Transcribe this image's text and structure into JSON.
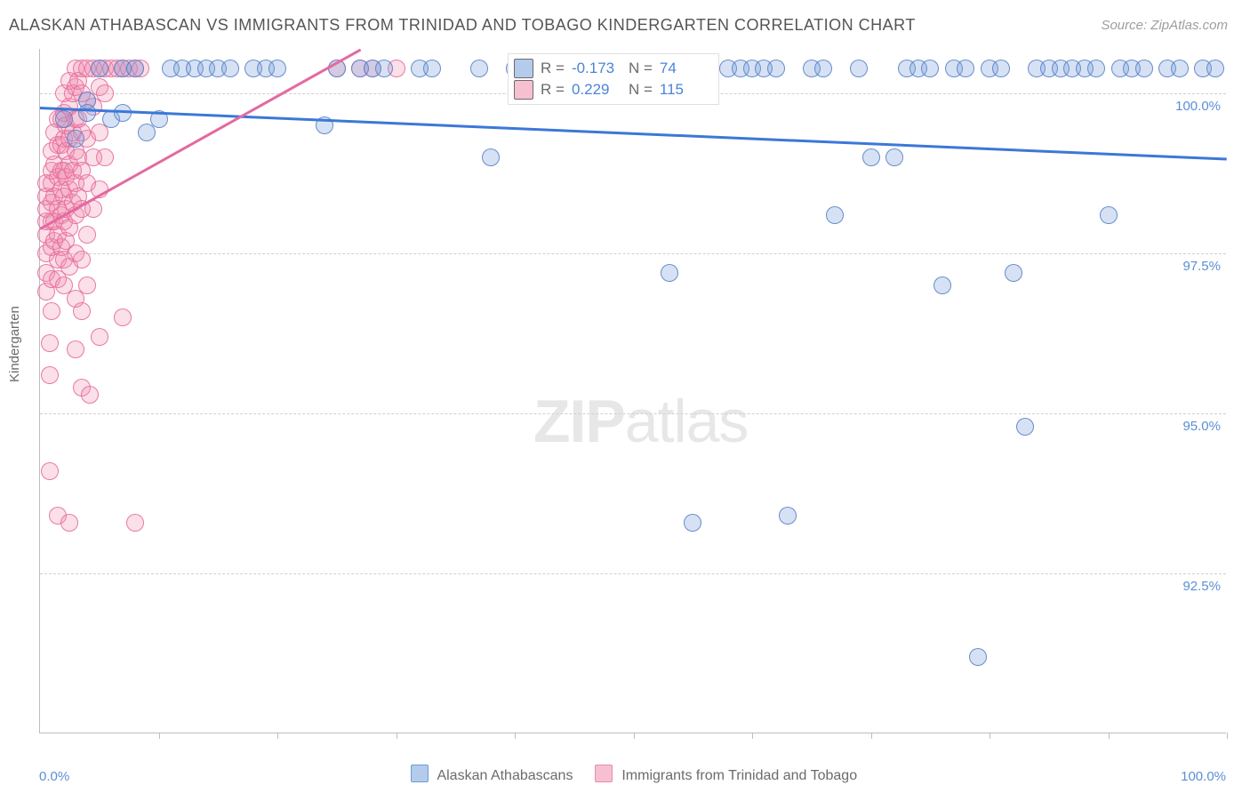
{
  "title": "ALASKAN ATHABASCAN VS IMMIGRANTS FROM TRINIDAD AND TOBAGO KINDERGARTEN CORRELATION CHART",
  "source": "Source: ZipAtlas.com",
  "watermark_a": "ZIP",
  "watermark_b": "atlas",
  "yaxis_label": "Kindergarten",
  "y_ticks": [
    {
      "value": 100.0,
      "label": "100.0%"
    },
    {
      "value": 97.5,
      "label": "97.5%"
    },
    {
      "value": 95.0,
      "label": "95.0%"
    },
    {
      "value": 92.5,
      "label": "92.5%"
    }
  ],
  "ylim": [
    90.0,
    100.7
  ],
  "xlim": [
    0,
    100
  ],
  "x_ticks_at": [
    10,
    20,
    30,
    40,
    50,
    60,
    70,
    80,
    90,
    100
  ],
  "x_left_label": "0.0%",
  "x_right_label": "100.0%",
  "series": {
    "blue": {
      "legend_label": "Alaskan Athabascans",
      "color_fill": "rgba(120,160,220,0.30)",
      "color_stroke": "rgba(90,130,200,0.9)",
      "trend_color": "#3b78d8",
      "R_label": "R =",
      "R_value": "-0.173",
      "N_label": "N =",
      "N_value": "74",
      "trend": {
        "x1": 0,
        "y1": 99.8,
        "x2": 100,
        "y2": 99.0
      },
      "points": [
        [
          2,
          99.6
        ],
        [
          3,
          99.3
        ],
        [
          4,
          99.9
        ],
        [
          4,
          99.7
        ],
        [
          5,
          100.4
        ],
        [
          6,
          99.6
        ],
        [
          7,
          99.7
        ],
        [
          7,
          100.4
        ],
        [
          8,
          100.4
        ],
        [
          9,
          99.4
        ],
        [
          10,
          99.6
        ],
        [
          11,
          100.4
        ],
        [
          12,
          100.4
        ],
        [
          13,
          100.4
        ],
        [
          14,
          100.4
        ],
        [
          15,
          100.4
        ],
        [
          16,
          100.4
        ],
        [
          18,
          100.4
        ],
        [
          19,
          100.4
        ],
        [
          20,
          100.4
        ],
        [
          24,
          99.5
        ],
        [
          25,
          100.4
        ],
        [
          27,
          100.4
        ],
        [
          28,
          100.4
        ],
        [
          29,
          100.4
        ],
        [
          32,
          100.4
        ],
        [
          33,
          100.4
        ],
        [
          37,
          100.4
        ],
        [
          38,
          99.0
        ],
        [
          40,
          100.4
        ],
        [
          43,
          100.4
        ],
        [
          45,
          100.4
        ],
        [
          48,
          100.4
        ],
        [
          50,
          100.4
        ],
        [
          51,
          100.4
        ],
        [
          53,
          97.2
        ],
        [
          55,
          93.3
        ],
        [
          58,
          100.4
        ],
        [
          59,
          100.4
        ],
        [
          60,
          100.4
        ],
        [
          61,
          100.4
        ],
        [
          62,
          100.4
        ],
        [
          63,
          93.4
        ],
        [
          65,
          100.4
        ],
        [
          66,
          100.4
        ],
        [
          67,
          98.1
        ],
        [
          69,
          100.4
        ],
        [
          70,
          99.0
        ],
        [
          72,
          99.0
        ],
        [
          73,
          100.4
        ],
        [
          74,
          100.4
        ],
        [
          75,
          100.4
        ],
        [
          76,
          97.0
        ],
        [
          77,
          100.4
        ],
        [
          78,
          100.4
        ],
        [
          79,
          91.2
        ],
        [
          80,
          100.4
        ],
        [
          81,
          100.4
        ],
        [
          82,
          97.2
        ],
        [
          83,
          94.8
        ],
        [
          84,
          100.4
        ],
        [
          85,
          100.4
        ],
        [
          86,
          100.4
        ],
        [
          87,
          100.4
        ],
        [
          88,
          100.4
        ],
        [
          89,
          100.4
        ],
        [
          90,
          98.1
        ],
        [
          91,
          100.4
        ],
        [
          92,
          100.4
        ],
        [
          93,
          100.4
        ],
        [
          95,
          100.4
        ],
        [
          96,
          100.4
        ],
        [
          98,
          100.4
        ],
        [
          99,
          100.4
        ]
      ]
    },
    "pink": {
      "legend_label": "Immigrants from Trinidad and Tobago",
      "color_fill": "rgba(240,140,175,0.28)",
      "color_stroke": "rgba(230,110,155,0.9)",
      "trend_color": "#e36aa0",
      "R_label": "R =",
      "R_value": "0.229",
      "N_label": "N =",
      "N_value": "115",
      "trend": {
        "x1": 0,
        "y1": 97.9,
        "x2": 27,
        "y2": 100.7
      },
      "points": [
        [
          0.5,
          98.0
        ],
        [
          0.5,
          97.8
        ],
        [
          0.5,
          98.2
        ],
        [
          0.5,
          98.4
        ],
        [
          0.5,
          98.6
        ],
        [
          0.5,
          97.5
        ],
        [
          0.5,
          97.2
        ],
        [
          0.5,
          96.9
        ],
        [
          0.8,
          96.1
        ],
        [
          0.8,
          95.6
        ],
        [
          0.8,
          94.1
        ],
        [
          1,
          98.0
        ],
        [
          1,
          98.3
        ],
        [
          1,
          98.6
        ],
        [
          1,
          98.8
        ],
        [
          1,
          99.1
        ],
        [
          1,
          97.6
        ],
        [
          1,
          97.1
        ],
        [
          1,
          96.6
        ],
        [
          1.2,
          98.9
        ],
        [
          1.2,
          98.4
        ],
        [
          1.2,
          98.0
        ],
        [
          1.2,
          97.7
        ],
        [
          1.2,
          99.4
        ],
        [
          1.5,
          99.6
        ],
        [
          1.5,
          99.2
        ],
        [
          1.5,
          98.7
        ],
        [
          1.5,
          98.2
        ],
        [
          1.5,
          97.8
        ],
        [
          1.5,
          97.4
        ],
        [
          1.5,
          97.1
        ],
        [
          1.5,
          93.4
        ],
        [
          1.8,
          98.5
        ],
        [
          1.8,
          98.1
        ],
        [
          1.8,
          98.8
        ],
        [
          1.8,
          99.2
        ],
        [
          1.8,
          99.6
        ],
        [
          1.8,
          97.6
        ],
        [
          2,
          98.0
        ],
        [
          2,
          98.4
        ],
        [
          2,
          98.8
        ],
        [
          2,
          99.3
        ],
        [
          2,
          99.7
        ],
        [
          2,
          100.0
        ],
        [
          2,
          97.4
        ],
        [
          2,
          97.0
        ],
        [
          2.2,
          98.2
        ],
        [
          2.2,
          98.7
        ],
        [
          2.2,
          99.1
        ],
        [
          2.2,
          99.5
        ],
        [
          2.2,
          97.7
        ],
        [
          2.5,
          98.5
        ],
        [
          2.5,
          98.9
        ],
        [
          2.5,
          99.3
        ],
        [
          2.5,
          99.8
        ],
        [
          2.5,
          100.2
        ],
        [
          2.5,
          97.9
        ],
        [
          2.5,
          97.3
        ],
        [
          2.5,
          93.3
        ],
        [
          2.8,
          98.3
        ],
        [
          2.8,
          98.8
        ],
        [
          2.8,
          99.4
        ],
        [
          2.8,
          100.0
        ],
        [
          3,
          98.1
        ],
        [
          3,
          98.6
        ],
        [
          3,
          99.1
        ],
        [
          3,
          99.6
        ],
        [
          3,
          100.1
        ],
        [
          3,
          100.4
        ],
        [
          3,
          97.5
        ],
        [
          3,
          96.8
        ],
        [
          3,
          96.0
        ],
        [
          3.2,
          98.4
        ],
        [
          3.2,
          99.0
        ],
        [
          3.2,
          99.6
        ],
        [
          3.2,
          100.2
        ],
        [
          3.5,
          98.2
        ],
        [
          3.5,
          98.8
        ],
        [
          3.5,
          99.4
        ],
        [
          3.5,
          100.0
        ],
        [
          3.5,
          100.4
        ],
        [
          3.5,
          97.4
        ],
        [
          3.5,
          96.6
        ],
        [
          3.5,
          95.4
        ],
        [
          4,
          98.6
        ],
        [
          4,
          99.3
        ],
        [
          4,
          99.9
        ],
        [
          4,
          100.4
        ],
        [
          4,
          97.8
        ],
        [
          4,
          97.0
        ],
        [
          4.2,
          95.3
        ],
        [
          4.5,
          98.2
        ],
        [
          4.5,
          99.0
        ],
        [
          4.5,
          99.8
        ],
        [
          4.5,
          100.4
        ],
        [
          5,
          98.5
        ],
        [
          5,
          99.4
        ],
        [
          5,
          100.1
        ],
        [
          5,
          100.4
        ],
        [
          5,
          96.2
        ],
        [
          5.5,
          99.0
        ],
        [
          5.5,
          100.0
        ],
        [
          5.5,
          100.4
        ],
        [
          6,
          100.4
        ],
        [
          6.5,
          100.4
        ],
        [
          7,
          100.4
        ],
        [
          7,
          96.5
        ],
        [
          7.5,
          100.4
        ],
        [
          8,
          100.4
        ],
        [
          8,
          93.3
        ],
        [
          8.5,
          100.4
        ],
        [
          25,
          100.4
        ],
        [
          27,
          100.4
        ],
        [
          28,
          100.4
        ],
        [
          30,
          100.4
        ]
      ]
    }
  }
}
